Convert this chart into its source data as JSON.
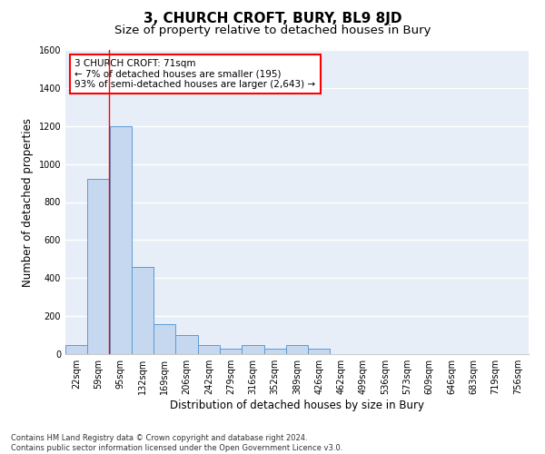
{
  "title": "3, CHURCH CROFT, BURY, BL9 8JD",
  "subtitle": "Size of property relative to detached houses in Bury",
  "xlabel": "Distribution of detached houses by size in Bury",
  "ylabel": "Number of detached properties",
  "footnote": "Contains HM Land Registry data © Crown copyright and database right 2024.\nContains public sector information licensed under the Open Government Licence v3.0.",
  "bin_labels": [
    "22sqm",
    "59sqm",
    "95sqm",
    "132sqm",
    "169sqm",
    "206sqm",
    "242sqm",
    "279sqm",
    "316sqm",
    "352sqm",
    "389sqm",
    "426sqm",
    "462sqm",
    "499sqm",
    "536sqm",
    "573sqm",
    "609sqm",
    "646sqm",
    "683sqm",
    "719sqm",
    "756sqm"
  ],
  "bar_heights": [
    50,
    920,
    1200,
    460,
    160,
    100,
    50,
    30,
    50,
    30,
    50,
    30,
    0,
    0,
    0,
    0,
    0,
    0,
    0,
    0,
    0
  ],
  "bar_color": "#c5d8f0",
  "bar_edge_color": "#5b9bd5",
  "annotation_box_text": "3 CHURCH CROFT: 71sqm\n← 7% of detached houses are smaller (195)\n93% of semi-detached houses are larger (2,643) →",
  "vline_x_idx": 1.48,
  "ylim": [
    0,
    1600
  ],
  "yticks": [
    0,
    200,
    400,
    600,
    800,
    1000,
    1200,
    1400,
    1600
  ],
  "background_color": "#e8eef7",
  "grid_color": "#ffffff",
  "title_fontsize": 11,
  "subtitle_fontsize": 9.5,
  "axis_label_fontsize": 8.5,
  "tick_fontsize": 7,
  "annotation_fontsize": 7.5,
  "footnote_fontsize": 6
}
